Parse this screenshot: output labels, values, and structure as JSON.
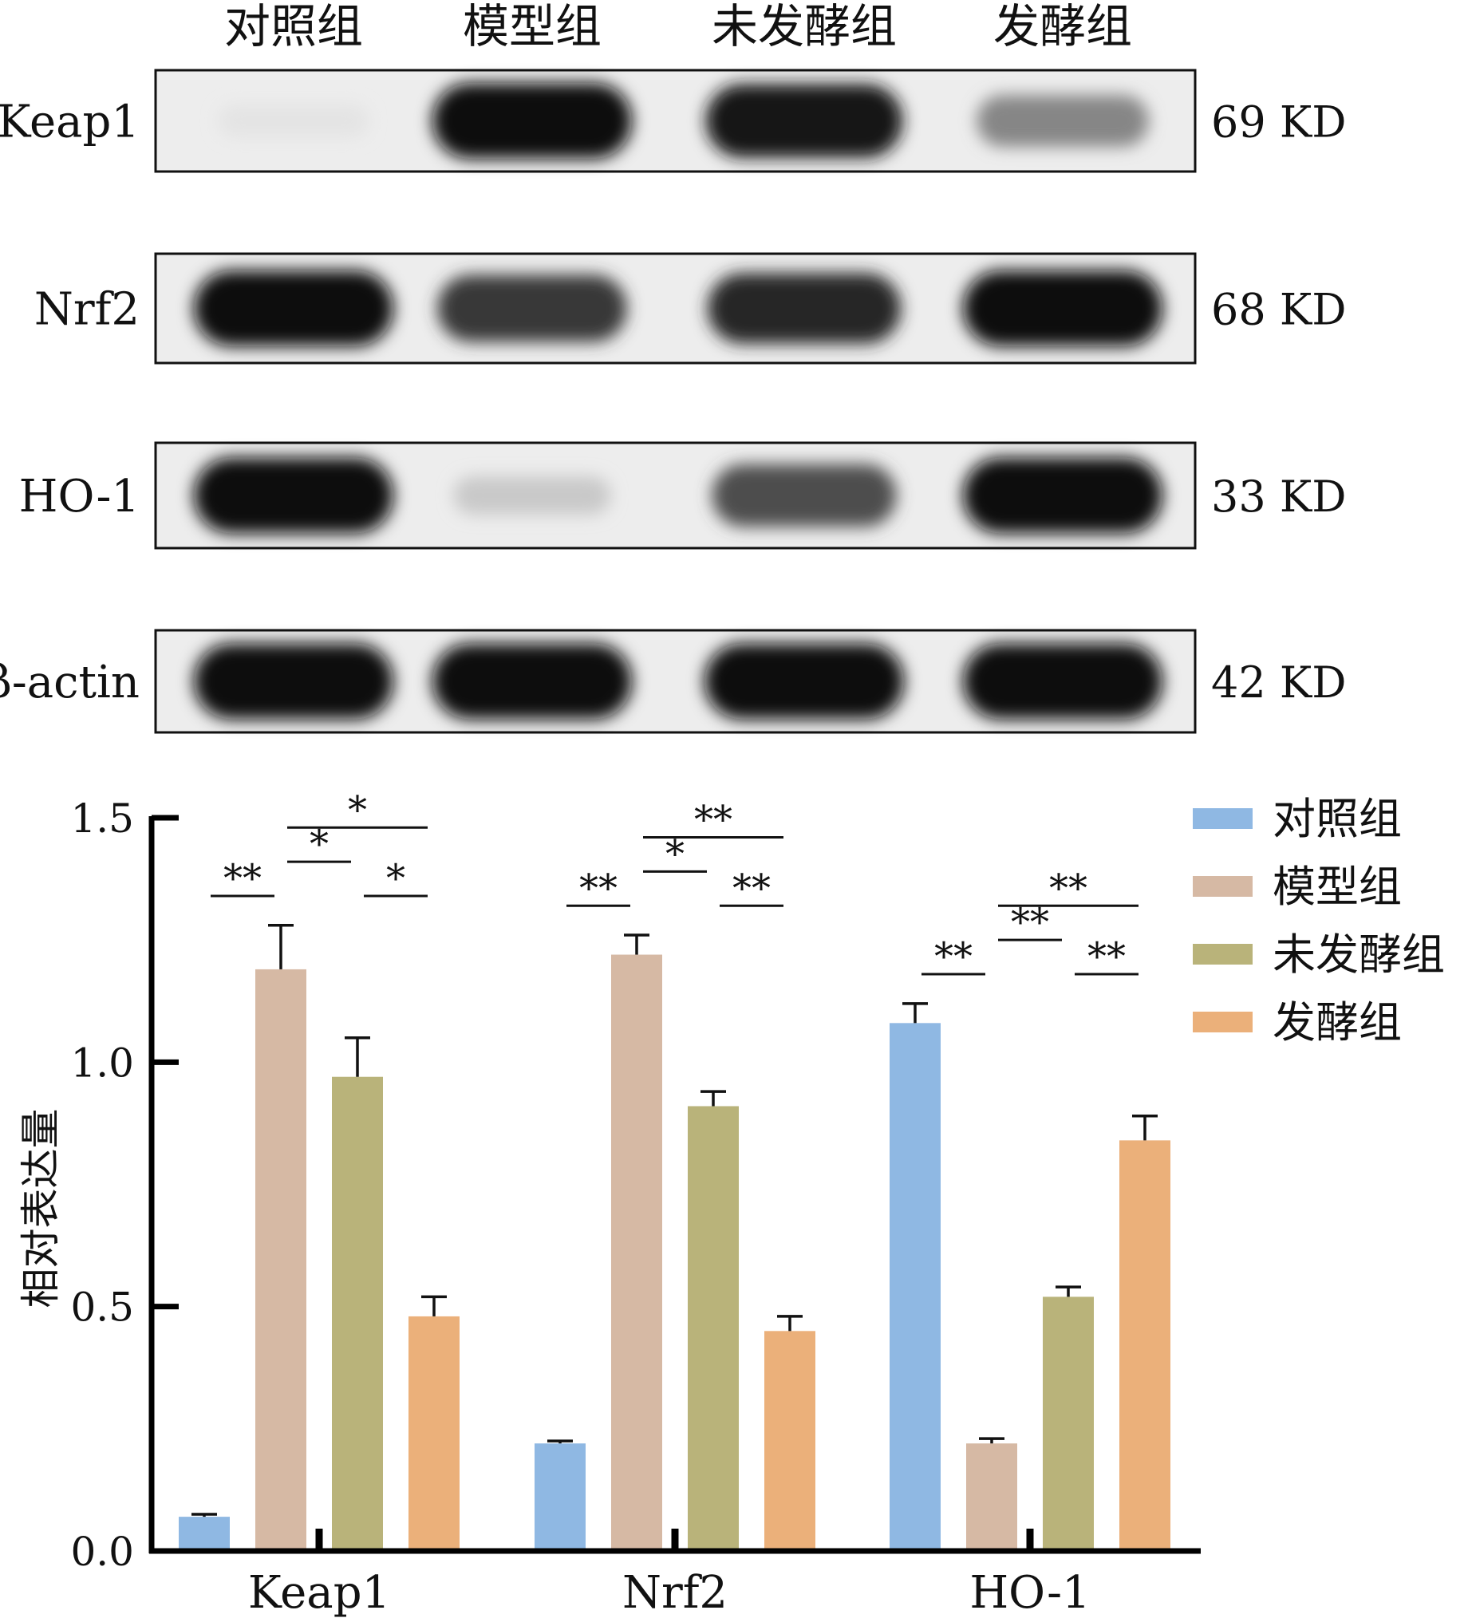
{
  "blot": {
    "lanes": [
      "对照组",
      "模型组",
      "未发酵组",
      "发酵组"
    ],
    "rows": [
      {
        "protein": "Keap1",
        "size": "69 KD",
        "intensity": [
          0.03,
          1.0,
          0.95,
          0.45
        ]
      },
      {
        "protein": "Nrf2",
        "size": "68 KD",
        "intensity": [
          1.0,
          0.8,
          0.88,
          1.0
        ]
      },
      {
        "protein": "HO-1",
        "size": "33 KD",
        "intensity": [
          1.0,
          0.15,
          0.7,
          1.0
        ]
      },
      {
        "protein": "β-actin",
        "size": "42 KD",
        "intensity": [
          1.0,
          1.0,
          1.0,
          1.0
        ]
      }
    ]
  },
  "chart_data": {
    "type": "bar",
    "ylabel": "相对表达量",
    "xlabel": "",
    "categories": [
      "Keap1",
      "Nrf2",
      "HO-1"
    ],
    "ylim": [
      0,
      1.5
    ],
    "yticks": [
      "0.0",
      "0.5",
      "1.0",
      "1.5"
    ],
    "ytick_values": [
      0,
      0.5,
      1.0,
      1.5
    ],
    "legend_position": "top-right",
    "series": [
      {
        "name": "对照组",
        "color": "#8fb8e3",
        "values": [
          0.07,
          0.22,
          1.08
        ],
        "errors": [
          0.005,
          0.005,
          0.04
        ]
      },
      {
        "name": "模型组",
        "color": "#d6b9a4",
        "values": [
          1.19,
          1.22,
          0.22
        ],
        "errors": [
          0.09,
          0.04,
          0.01
        ]
      },
      {
        "name": "未发酵组",
        "color": "#b9b37a",
        "values": [
          0.97,
          0.91,
          0.52
        ],
        "errors": [
          0.08,
          0.03,
          0.02
        ]
      },
      {
        "name": "发酵组",
        "color": "#ebb07a",
        "values": [
          0.48,
          0.45,
          0.84
        ],
        "errors": [
          0.04,
          0.03,
          0.05
        ]
      }
    ],
    "significance": [
      {
        "category": 0,
        "from": 0,
        "to": 1,
        "label": "**",
        "y": 1.34
      },
      {
        "category": 0,
        "from": 1,
        "to": 2,
        "label": "*",
        "y": 1.41
      },
      {
        "category": 0,
        "from": 2,
        "to": 3,
        "label": "*",
        "y": 1.34
      },
      {
        "category": 0,
        "from": 1,
        "to": 3,
        "label": "*",
        "y": 1.48
      },
      {
        "category": 1,
        "from": 0,
        "to": 1,
        "label": "**",
        "y": 1.32
      },
      {
        "category": 1,
        "from": 1,
        "to": 2,
        "label": "*",
        "y": 1.39
      },
      {
        "category": 1,
        "from": 2,
        "to": 3,
        "label": "**",
        "y": 1.32
      },
      {
        "category": 1,
        "from": 1,
        "to": 3,
        "label": "**",
        "y": 1.46
      },
      {
        "category": 2,
        "from": 0,
        "to": 1,
        "label": "**",
        "y": 1.18
      },
      {
        "category": 2,
        "from": 1,
        "to": 2,
        "label": "**",
        "y": 1.25
      },
      {
        "category": 2,
        "from": 2,
        "to": 3,
        "label": "**",
        "y": 1.18
      },
      {
        "category": 2,
        "from": 1,
        "to": 3,
        "label": "**",
        "y": 1.32
      }
    ]
  }
}
